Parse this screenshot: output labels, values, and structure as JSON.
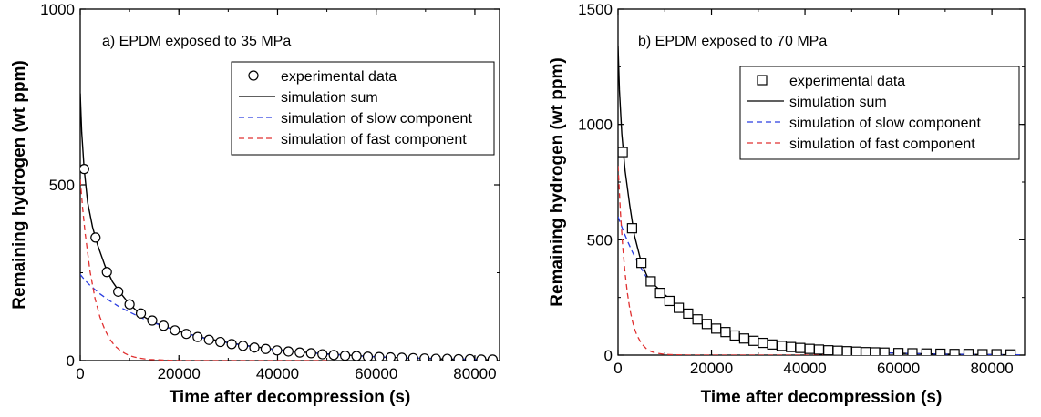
{
  "chart_data": [
    {
      "type": "scatter",
      "panel_label": "a) EPDM exposed to 35 MPa",
      "xlabel": "Time after decompression (s)",
      "ylabel": "Remaining hydrogen (wt ppm)",
      "xlim": [
        0,
        85000
      ],
      "ylim": [
        0,
        1000
      ],
      "xticks": [
        0,
        20000,
        40000,
        60000,
        80000
      ],
      "yticks": [
        0,
        500,
        1000
      ],
      "x_minor_step": 10000,
      "y_minor_step": 250,
      "legend_position": "top-right",
      "legend": [
        {
          "label": "experimental data",
          "style": "marker",
          "marker": "circle",
          "color": "#000000"
        },
        {
          "label": "simulation sum",
          "style": "solid",
          "color": "#000000"
        },
        {
          "label": "simulation of slow component",
          "style": "dashed",
          "color": "#2a3de0"
        },
        {
          "label": "simulation of fast component",
          "style": "dashed",
          "color": "#e03030"
        }
      ],
      "series": [
        {
          "name": "experimental data",
          "marker": "circle",
          "x": [
            800,
            3100,
            5400,
            7700,
            10000,
            12300,
            14600,
            16900,
            19200,
            21500,
            23800,
            26100,
            28400,
            30700,
            33000,
            35300,
            37600,
            39900,
            42200,
            44500,
            46800,
            49100,
            51400,
            53700,
            56000,
            58300,
            60600,
            62900,
            65200,
            67500,
            69800,
            72100,
            74400,
            76700,
            79000,
            81300,
            83600
          ],
          "y": [
            545,
            350,
            252,
            196,
            160,
            134,
            114,
            99,
            86,
            76,
            67,
            59,
            53,
            47,
            42,
            37,
            33,
            29,
            26,
            23,
            21,
            18,
            16,
            14,
            13,
            11,
            10,
            9,
            8,
            7,
            6,
            5,
            5,
            4,
            4,
            3,
            3
          ]
        },
        {
          "name": "simulation sum",
          "color": "#000000",
          "x": [
            0,
            300,
            800,
            1500,
            2500,
            3500,
            5000,
            6500,
            8000,
            10000,
            12500,
            15000,
            20000,
            25000,
            30000,
            35000,
            40000,
            45000,
            50000,
            55000,
            60000,
            65000,
            70000,
            75000,
            80000,
            84000
          ],
          "y": [
            760,
            650,
            545,
            450,
            380,
            330,
            270,
            225,
            195,
            160,
            128,
            108,
            83,
            65,
            51,
            40,
            31,
            24,
            19,
            15,
            11,
            8,
            6,
            4,
            3,
            2
          ]
        },
        {
          "name": "simulation of slow component",
          "color": "#2a3de0",
          "x": [
            0,
            1000,
            2000,
            4000,
            6000,
            8000,
            10000,
            12500,
            15000,
            20000,
            25000,
            30000,
            35000,
            40000,
            45000,
            50000,
            55000,
            60000,
            65000,
            70000,
            75000,
            80000,
            84000
          ],
          "y": [
            245,
            228,
            214,
            190,
            170,
            152,
            138,
            121,
            107,
            82,
            64,
            50,
            39,
            30,
            24,
            18,
            14,
            11,
            8,
            6,
            5,
            4,
            3
          ]
        },
        {
          "name": "simulation of fast component",
          "color": "#e03030",
          "x": [
            0,
            500,
            1000,
            2000,
            3000,
            4000,
            5000,
            6000,
            7000,
            8000,
            9000,
            10000,
            11000,
            12000,
            14000,
            16000,
            18000,
            20000,
            30000,
            40000,
            50000
          ],
          "y": [
            515,
            432,
            362,
            253,
            177,
            124,
            87,
            61,
            42,
            30,
            21,
            14,
            10,
            7,
            3,
            2,
            1,
            0,
            0,
            0,
            0
          ]
        }
      ]
    },
    {
      "type": "scatter",
      "panel_label": "b) EPDM exposed to 70 MPa",
      "xlabel": "Time after decompression (s)",
      "ylabel": "Remaining hydrogen (wt ppm)",
      "xlim": [
        0,
        87000
      ],
      "ylim": [
        0,
        1500
      ],
      "xticks": [
        0,
        20000,
        40000,
        60000,
        80000
      ],
      "yticks": [
        0,
        500,
        1000,
        1500
      ],
      "x_minor_step": 10000,
      "y_minor_step": 250,
      "legend_position": "top-right",
      "legend": [
        {
          "label": "experimental data",
          "style": "marker",
          "marker": "square",
          "color": "#000000"
        },
        {
          "label": "simulation sum",
          "style": "solid",
          "color": "#000000"
        },
        {
          "label": "simulation of slow component",
          "style": "dashed",
          "color": "#2a3de0"
        },
        {
          "label": "simulation of fast component",
          "style": "dashed",
          "color": "#e03030"
        }
      ],
      "series": [
        {
          "name": "experimental data",
          "marker": "square",
          "x": [
            1000,
            3000,
            5000,
            7000,
            9000,
            11000,
            13000,
            15000,
            17000,
            19000,
            21000,
            23000,
            25000,
            27000,
            29000,
            31000,
            33000,
            35000,
            37000,
            39000,
            41000,
            43000,
            45000,
            47000,
            49000,
            51000,
            53000,
            55000,
            57000,
            60000,
            63000,
            66000,
            69000,
            72000,
            75000,
            78000,
            81000,
            84000
          ],
          "y": [
            880,
            550,
            400,
            320,
            270,
            235,
            205,
            180,
            155,
            135,
            115,
            100,
            85,
            72,
            62,
            53,
            46,
            40,
            35,
            31,
            27,
            24,
            21,
            19,
            17,
            15,
            13,
            12,
            11,
            9,
            8,
            7,
            6,
            5,
            5,
            4,
            4,
            3
          ]
        },
        {
          "name": "simulation sum",
          "color": "#000000",
          "x": [
            0,
            300,
            800,
            1500,
            2500,
            3500,
            5000,
            6500,
            8000,
            10000,
            12500,
            15000,
            20000,
            25000,
            30000,
            35000,
            40000,
            45000,
            50000,
            55000,
            60000,
            65000,
            70000,
            75000,
            80000,
            86000
          ],
          "y": [
            1340,
            1150,
            960,
            800,
            650,
            520,
            400,
            330,
            300,
            262,
            220,
            180,
            128,
            90,
            64,
            45,
            32,
            23,
            16,
            11,
            8,
            6,
            4,
            3,
            2,
            1
          ]
        },
        {
          "name": "simulation of slow component",
          "color": "#2a3de0",
          "x": [
            0,
            1000,
            2000,
            3000,
            4000,
            6000,
            8000,
            10000,
            12500,
            15000,
            20000,
            25000,
            30000,
            35000,
            40000,
            45000,
            50000,
            55000,
            60000,
            65000,
            70000,
            75000,
            80000,
            86000
          ],
          "y": [
            600,
            545,
            495,
            450,
            410,
            340,
            290,
            255,
            215,
            180,
            128,
            90,
            64,
            45,
            32,
            23,
            16,
            11,
            8,
            6,
            4,
            3,
            2,
            1
          ]
        },
        {
          "name": "simulation of fast component",
          "color": "#e03030",
          "x": [
            0,
            500,
            1000,
            1500,
            2000,
            2500,
            3000,
            3500,
            4000,
            5000,
            6000,
            7000,
            8000,
            10000,
            15000,
            20000,
            30000,
            40000,
            50000
          ],
          "y": [
            820,
            620,
            470,
            355,
            268,
            203,
            153,
            116,
            88,
            50,
            29,
            16,
            9,
            3,
            0,
            0,
            0,
            0,
            0
          ]
        }
      ]
    }
  ]
}
